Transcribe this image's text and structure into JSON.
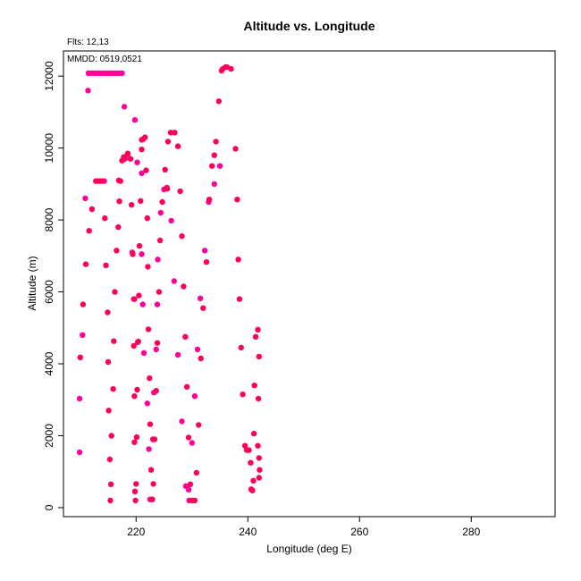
{
  "chart_data": {
    "type": "scatter",
    "title": "Altitude vs. Longitude",
    "xlabel": "Longitude (deg E)",
    "ylabel": "Altitude (m)",
    "flts_note": "Flts: 12,13",
    "date_note": "MMDD: 0519,0521",
    "xlim": [
      207,
      295
    ],
    "ylim": [
      -250,
      12700
    ],
    "x_ticks": [
      220,
      240,
      260,
      280
    ],
    "y_ticks": [
      0,
      2000,
      4000,
      6000,
      8000,
      10000,
      12000
    ],
    "x_tick_labels": [
      "220",
      "240",
      "260",
      "280"
    ],
    "y_tick_labels": [
      "0",
      "2000",
      "4000",
      "6000",
      "8000",
      "10000",
      "12000"
    ],
    "grid": false,
    "series": [
      {
        "color": "#ff0099",
        "points": [
          [
            209.9,
            1540
          ],
          [
            209.9,
            3030
          ],
          [
            210.4,
            4800
          ],
          [
            210.9,
            8600
          ],
          [
            211.4,
            11600
          ],
          [
            211.5,
            12080
          ],
          [
            212.0,
            12080
          ],
          [
            212.5,
            12080
          ],
          [
            213.0,
            12080
          ],
          [
            213.5,
            12080
          ],
          [
            214.0,
            12080
          ],
          [
            214.5,
            12080
          ],
          [
            215.0,
            12080
          ],
          [
            215.5,
            12080
          ],
          [
            216.0,
            12080
          ],
          [
            216.5,
            12080
          ],
          [
            217.0,
            12080
          ],
          [
            217.5,
            12080
          ],
          [
            217.9,
            11150
          ],
          [
            218.5,
            9850
          ],
          [
            219.8,
            10780
          ],
          [
            220.2,
            9600
          ],
          [
            221.0,
            9300
          ],
          [
            219.7,
            5800
          ],
          [
            221.2,
            5650
          ],
          [
            220.3,
            4600
          ],
          [
            221.4,
            4300
          ],
          [
            222.0,
            2900
          ],
          [
            222.3,
            1630
          ],
          [
            222.5,
            230
          ],
          [
            223.2,
            3200
          ],
          [
            223.0,
            1900
          ],
          [
            223.6,
            4400
          ],
          [
            223.9,
            6900
          ],
          [
            223.8,
            5650
          ],
          [
            224.4,
            8200
          ],
          [
            225.0,
            8850
          ],
          [
            225.5,
            8900
          ],
          [
            226.3,
            7980
          ],
          [
            226.8,
            6300
          ],
          [
            227.5,
            4250
          ],
          [
            228.2,
            2400
          ],
          [
            228.9,
            600
          ],
          [
            229.4,
            500
          ],
          [
            229.5,
            200
          ],
          [
            230.0,
            1800
          ],
          [
            230.5,
            3100
          ],
          [
            231.0,
            4400
          ],
          [
            231.5,
            5820
          ],
          [
            232.3,
            7150
          ],
          [
            233.0,
            8500
          ],
          [
            234.0,
            9000
          ],
          [
            235.0,
            9500
          ],
          [
            235.5,
            12200
          ],
          [
            236.3,
            12250
          ],
          [
            218.0,
            9700
          ],
          [
            221.0,
            7050
          ],
          [
            219.3,
            7100
          ],
          [
            211.5,
            12080
          ],
          [
            214.3,
            9080
          ]
        ]
      },
      {
        "color": "#ff0055",
        "points": [
          [
            210.0,
            4180
          ],
          [
            210.5,
            5650
          ],
          [
            211.0,
            6770
          ],
          [
            211.6,
            7700
          ],
          [
            212.1,
            8300
          ],
          [
            212.8,
            9080
          ],
          [
            213.3,
            9080
          ],
          [
            213.8,
            9080
          ],
          [
            214.4,
            8050
          ],
          [
            214.6,
            6740
          ],
          [
            214.9,
            5430
          ],
          [
            215.0,
            4050
          ],
          [
            215.1,
            2700
          ],
          [
            215.3,
            1340
          ],
          [
            215.4,
            200
          ],
          [
            215.5,
            650
          ],
          [
            215.6,
            2000
          ],
          [
            215.9,
            3300
          ],
          [
            216.0,
            4630
          ],
          [
            216.2,
            6000
          ],
          [
            216.5,
            7150
          ],
          [
            216.8,
            7800
          ],
          [
            217.0,
            8520
          ],
          [
            217.2,
            9080
          ],
          [
            217.5,
            9650
          ],
          [
            217.8,
            9750
          ],
          [
            218.5,
            9830
          ],
          [
            219.0,
            9700
          ],
          [
            219.2,
            8420
          ],
          [
            219.4,
            7050
          ],
          [
            219.6,
            5800
          ],
          [
            219.6,
            4500
          ],
          [
            219.7,
            3100
          ],
          [
            219.7,
            1820
          ],
          [
            219.8,
            450
          ],
          [
            219.9,
            200
          ],
          [
            220.0,
            660
          ],
          [
            220.1,
            1960
          ],
          [
            220.2,
            3280
          ],
          [
            220.4,
            4620
          ],
          [
            220.5,
            5900
          ],
          [
            220.6,
            7280
          ],
          [
            220.8,
            8530
          ],
          [
            221.0,
            9960
          ],
          [
            221.3,
            10250
          ],
          [
            221.6,
            10300
          ],
          [
            221.8,
            9380
          ],
          [
            222.0,
            8050
          ],
          [
            222.1,
            6700
          ],
          [
            222.2,
            4960
          ],
          [
            222.4,
            3600
          ],
          [
            222.5,
            2320
          ],
          [
            222.7,
            1050
          ],
          [
            222.9,
            230
          ],
          [
            223.1,
            660
          ],
          [
            223.3,
            1900
          ],
          [
            223.6,
            3250
          ],
          [
            223.8,
            4580
          ],
          [
            224.1,
            6000
          ],
          [
            224.3,
            7430
          ],
          [
            224.7,
            8500
          ],
          [
            225.2,
            9400
          ],
          [
            225.7,
            10180
          ],
          [
            226.2,
            10430
          ],
          [
            226.9,
            10430
          ],
          [
            227.5,
            10050
          ],
          [
            227.9,
            8800
          ],
          [
            228.2,
            7550
          ],
          [
            228.5,
            6150
          ],
          [
            228.8,
            4750
          ],
          [
            229.1,
            3360
          ],
          [
            229.4,
            1950
          ],
          [
            229.7,
            650
          ],
          [
            230.0,
            200
          ],
          [
            230.5,
            200
          ],
          [
            230.8,
            970
          ],
          [
            231.2,
            2300
          ],
          [
            231.6,
            4150
          ],
          [
            232.0,
            5550
          ],
          [
            232.6,
            6830
          ],
          [
            233.1,
            8570
          ],
          [
            233.6,
            9500
          ],
          [
            234.0,
            9800
          ],
          [
            234.3,
            10180
          ],
          [
            234.8,
            11300
          ],
          [
            235.3,
            12150
          ],
          [
            236.0,
            12250
          ],
          [
            237.0,
            12200
          ],
          [
            237.8,
            9980
          ],
          [
            238.1,
            8570
          ],
          [
            238.3,
            6900
          ],
          [
            238.5,
            5800
          ],
          [
            238.8,
            4450
          ],
          [
            239.1,
            3150
          ],
          [
            239.5,
            1720
          ],
          [
            239.8,
            1600
          ],
          [
            240.2,
            1600
          ],
          [
            240.5,
            1250
          ],
          [
            240.8,
            480
          ],
          [
            241.0,
            750
          ],
          [
            241.1,
            2060
          ],
          [
            241.2,
            3400
          ],
          [
            241.4,
            4750
          ],
          [
            241.8,
            4950
          ],
          [
            242.0,
            4200
          ],
          [
            241.9,
            3030
          ],
          [
            241.8,
            1720
          ],
          [
            242.0,
            1380
          ],
          [
            242.1,
            1050
          ],
          [
            242.0,
            830
          ],
          [
            240.8,
            480
          ],
          [
            240.6,
            510
          ],
          [
            221.0,
            10230
          ],
          [
            216.9,
            9100
          ],
          [
            225.6,
            8870
          ]
        ]
      }
    ]
  }
}
